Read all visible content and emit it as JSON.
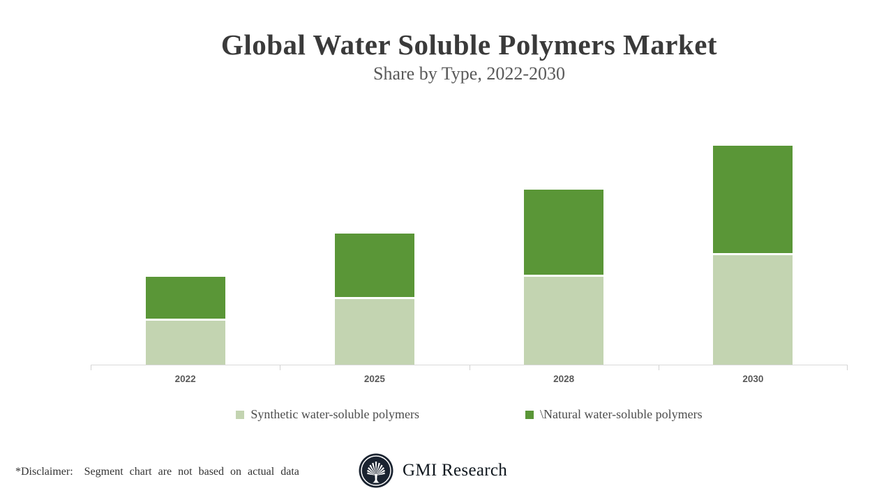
{
  "header": {
    "title": "Global Water Soluble Polymers Market",
    "subtitle": "Share by Type, 2022-2030"
  },
  "chart_data": {
    "type": "bar",
    "stacked": true,
    "title": "Global Water Soluble Polymers Market",
    "subtitle": "Share by Type, 2022-2030",
    "categories": [
      "2022",
      "2025",
      "2028",
      "2030"
    ],
    "series": [
      {
        "name": "Synthetic water-soluble polymers",
        "color": "#c3d4b1",
        "values": [
          1,
          1.5,
          2,
          2.5
        ]
      },
      {
        "name": "\\Natural water-soluble polymers",
        "color": "#5a9637",
        "values": [
          1,
          1.5,
          2,
          2.5
        ]
      }
    ],
    "value_units": "relative share, illustrative (chart not based on actual data)",
    "ylim": [
      0,
      5.8
    ],
    "grid": false,
    "y_axis_shown": false,
    "legend_position": "bottom",
    "axis_line_color": "#d9d9d9"
  },
  "footer": {
    "disclaimer_label": "*Disclaimer:",
    "disclaimer_text": "Segment chart are not based on actual data",
    "brand": "GMI Research"
  },
  "colors": {
    "title": "#3a3a3a",
    "subtitle": "#595959",
    "axis_label": "#595959",
    "legend_text": "#4c4c4c",
    "synthetic_green": "#c3d4b1",
    "natural_green": "#5a9637",
    "logo_navy": "#1a2330"
  }
}
